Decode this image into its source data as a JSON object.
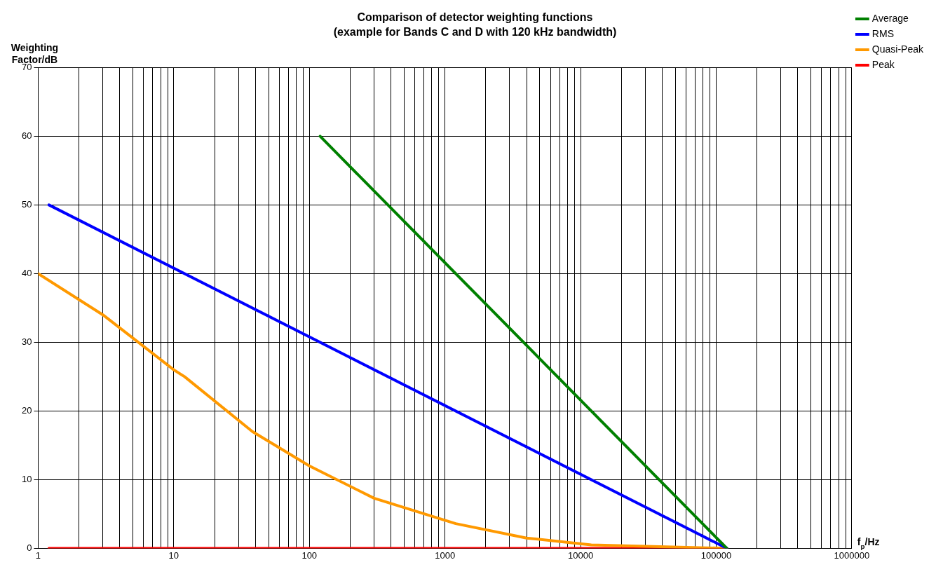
{
  "chart_data": {
    "type": "line",
    "title": "Comparison of detector weighting functions",
    "subtitle": "(example for Bands C and D with 120 kHz bandwidth)",
    "xlabel": "f$_{p}$/Hz",
    "ylabel": "Weighting Factor/dB",
    "series": [
      {
        "name": "Average",
        "color": "#008000",
        "x": [
          120,
          120000
        ],
        "values": [
          60,
          0
        ]
      },
      {
        "name": "RMS",
        "color": "#0000ff",
        "x": [
          1.2,
          120000
        ],
        "values": [
          50,
          0
        ]
      },
      {
        "name": "Quasi-Peak",
        "color": "#ff9900",
        "x": [
          1,
          3,
          10,
          12,
          38,
          100,
          300,
          1200,
          4000,
          12000,
          120000
        ],
        "values": [
          40,
          34,
          26,
          25,
          17,
          12,
          7.3,
          3.6,
          1.5,
          0.5,
          0
        ]
      },
      {
        "name": "Peak",
        "color": "#ff0000",
        "x": [
          1.2,
          120000
        ],
        "values": [
          0,
          0
        ]
      }
    ],
    "log": "x",
    "xlim": [
      1,
      1000000
    ],
    "xticks": [
      1,
      {
        "value": 2,
        "label": null
      },
      {
        "value": 3,
        "label": null
      },
      {
        "value": 4,
        "label": null
      },
      {
        "value": 5,
        "label": null
      },
      {
        "value": 6,
        "label": null
      },
      {
        "value": 7,
        "label": null
      },
      {
        "value": 8,
        "label": null
      },
      {
        "value": 9,
        "label": null
      },
      10,
      {
        "value": 20,
        "label": null
      },
      {
        "value": 30,
        "label": null
      },
      {
        "value": 40,
        "label": null
      },
      {
        "value": 50,
        "label": null
      },
      {
        "value": 60,
        "label": null
      },
      {
        "value": 70,
        "label": null
      },
      {
        "value": 80,
        "label": null
      },
      {
        "value": 90,
        "label": null
      },
      100,
      {
        "value": 200,
        "label": null
      },
      {
        "value": 300,
        "label": null
      },
      {
        "value": 400,
        "label": null
      },
      {
        "value": 500,
        "label": null
      },
      {
        "value": 600,
        "label": null
      },
      {
        "value": 700,
        "label": null
      },
      {
        "value": 800,
        "label": null
      },
      {
        "value": 900,
        "label": null
      },
      1000,
      {
        "value": 2000,
        "label": null
      },
      {
        "value": 3000,
        "label": null
      },
      {
        "value": 4000,
        "label": null
      },
      {
        "value": 5000,
        "label": null
      },
      {
        "value": 6000,
        "label": null
      },
      {
        "value": 7000,
        "label": null
      },
      {
        "value": 8000,
        "label": null
      },
      {
        "value": 9000,
        "label": null
      },
      10000,
      {
        "value": 20000,
        "label": null
      },
      {
        "value": 30000,
        "label": null
      },
      {
        "value": 40000,
        "label": null
      },
      {
        "value": 50000,
        "label": null
      },
      {
        "value": 60000,
        "label": null
      },
      {
        "value": 70000,
        "label": null
      },
      {
        "value": 80000,
        "label": null
      },
      {
        "value": 90000,
        "label": null
      },
      100000,
      {
        "value": 200000,
        "label": null
      },
      {
        "value": 300000,
        "label": null
      },
      {
        "value": 400000,
        "label": null
      },
      {
        "value": 500000,
        "label": null
      },
      {
        "value": 600000,
        "label": null
      },
      {
        "value": 700000,
        "label": null
      },
      {
        "value": 800000,
        "label": null
      },
      {
        "value": 900000,
        "label": null
      },
      1000000
    ],
    "ylim": [
      0,
      70
    ],
    "yticks": [
      0,
      10,
      20,
      30,
      40,
      50,
      60,
      70
    ],
    "grid": true,
    "legend": "top right",
    "marker": "none",
    "line_style": "solid"
  }
}
